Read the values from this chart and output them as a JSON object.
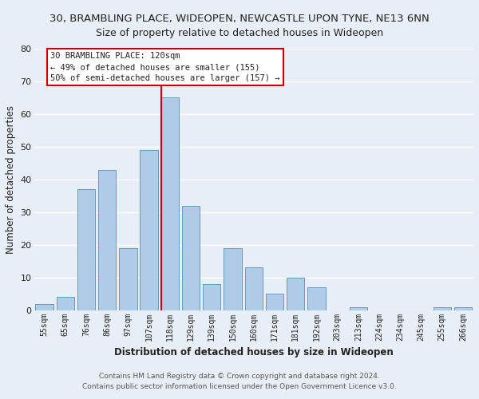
{
  "title": "30, BRAMBLING PLACE, WIDEOPEN, NEWCASTLE UPON TYNE, NE13 6NN",
  "subtitle": "Size of property relative to detached houses in Wideopen",
  "xlabel": "Distribution of detached houses by size in Wideopen",
  "ylabel": "Number of detached properties",
  "bar_labels": [
    "55sqm",
    "65sqm",
    "76sqm",
    "86sqm",
    "97sqm",
    "107sqm",
    "118sqm",
    "129sqm",
    "139sqm",
    "150sqm",
    "160sqm",
    "171sqm",
    "181sqm",
    "192sqm",
    "203sqm",
    "213sqm",
    "224sqm",
    "234sqm",
    "245sqm",
    "255sqm",
    "266sqm"
  ],
  "bar_values": [
    2,
    4,
    37,
    43,
    19,
    49,
    65,
    32,
    8,
    19,
    13,
    5,
    10,
    7,
    0,
    1,
    0,
    0,
    0,
    1,
    1
  ],
  "bar_color": "#aecce8",
  "bar_edge_color": "#6699bb",
  "highlight_index": 6,
  "highlight_line_color": "#cc0000",
  "ylim": [
    0,
    80
  ],
  "yticks": [
    0,
    10,
    20,
    30,
    40,
    50,
    60,
    70,
    80
  ],
  "annotation_title": "30 BRAMBLING PLACE: 120sqm",
  "annotation_line1": "← 49% of detached houses are smaller (155)",
  "annotation_line2": "50% of semi-detached houses are larger (157) →",
  "annotation_box_color": "#ffffff",
  "annotation_box_edge_color": "#cc0000",
  "footer1": "Contains HM Land Registry data © Crown copyright and database right 2024.",
  "footer2": "Contains public sector information licensed under the Open Government Licence v3.0.",
  "background_color": "#e8eef5",
  "grid_color": "#ffffff",
  "title_fontsize": 9.5,
  "subtitle_fontsize": 9
}
